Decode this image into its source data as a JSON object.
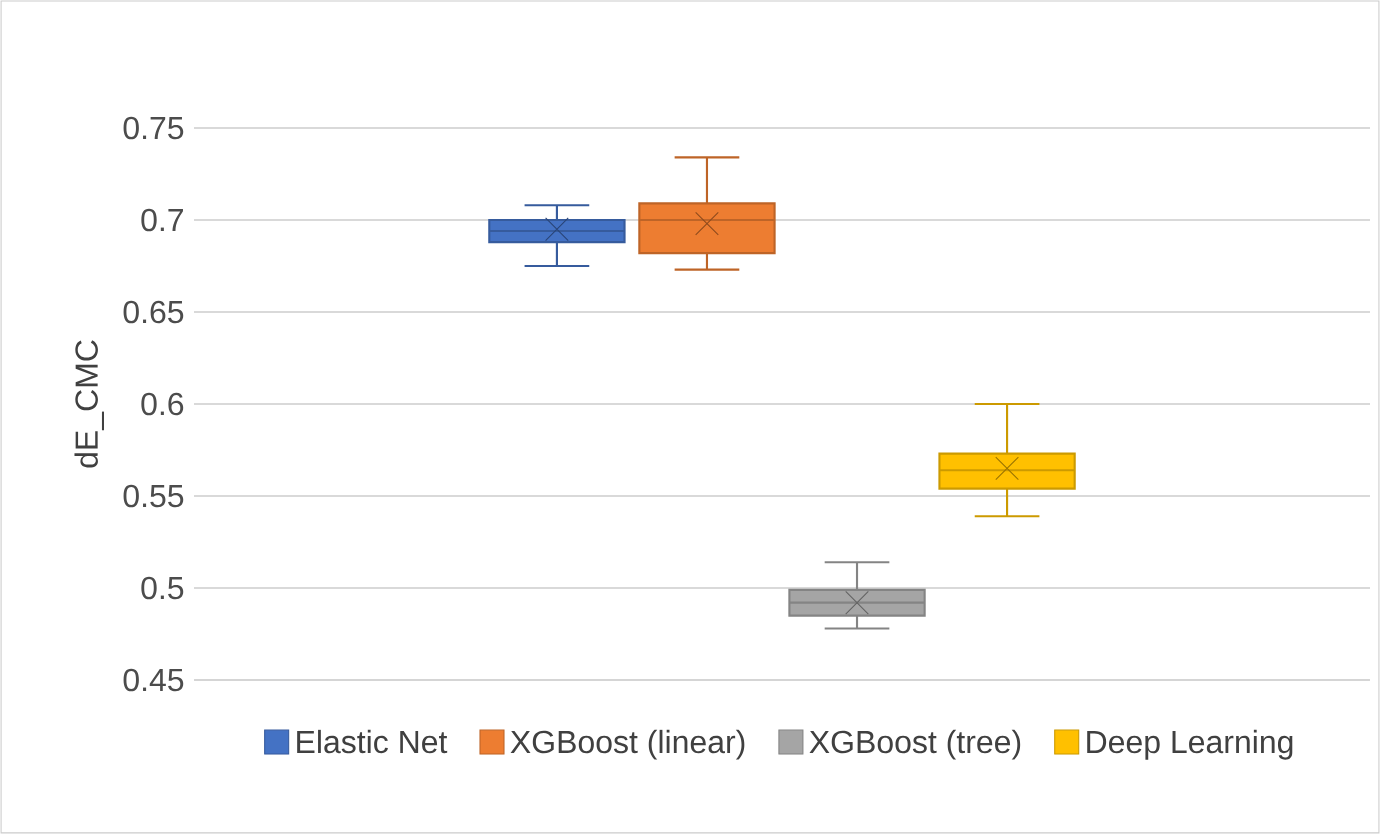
{
  "chart_data": {
    "type": "box",
    "ylabel": "dE_CMC",
    "categories": [
      null
    ],
    "ylim": [
      0.45,
      0.75
    ],
    "yticks": [
      0.45,
      0.5,
      0.55,
      0.6,
      0.65,
      0.7,
      0.75
    ],
    "grid": "y",
    "legend": "bottom",
    "series": [
      {
        "name": "Elastic Net",
        "color": "#4472c4",
        "boxes": [
          {
            "low": 0.675,
            "q1": 0.688,
            "median": 0.694,
            "q3": 0.7,
            "high": 0.708,
            "mean": 0.695
          }
        ]
      },
      {
        "name": "XGBoost (linear)",
        "color": "#ed7d31",
        "boxes": [
          {
            "low": 0.673,
            "q1": 0.682,
            "median": 0.7,
            "q3": 0.709,
            "high": 0.734,
            "mean": 0.698
          }
        ]
      },
      {
        "name": "XGBoost (tree)",
        "color": "#a5a5a5",
        "boxes": [
          {
            "low": 0.478,
            "q1": 0.485,
            "median": 0.492,
            "q3": 0.499,
            "high": 0.514,
            "mean": 0.492
          }
        ]
      },
      {
        "name": "Deep Learning",
        "color": "#ffc000",
        "boxes": [
          {
            "low": 0.539,
            "q1": 0.554,
            "median": 0.564,
            "q3": 0.573,
            "high": 0.6,
            "mean": 0.565
          }
        ]
      }
    ]
  }
}
